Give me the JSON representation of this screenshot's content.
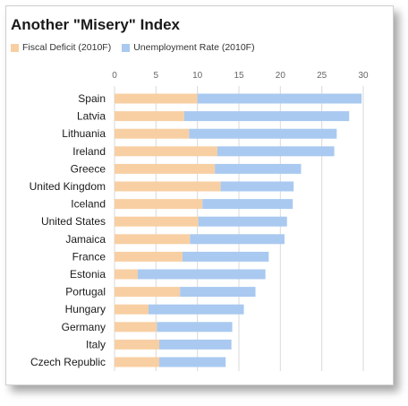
{
  "chart_data": {
    "type": "bar",
    "orientation": "horizontal",
    "stacked": true,
    "title": "Another \"Misery\" Index",
    "xlabel": "",
    "ylabel": "",
    "xlim": [
      0,
      30
    ],
    "x_ticks": [
      "0",
      "5",
      "10",
      "15",
      "20",
      "25",
      "30"
    ],
    "grid": true,
    "legend_position": "top-left",
    "categories": [
      "Spain",
      "Latvia",
      "Lithuania",
      "Ireland",
      "Greece",
      "United Kingdom",
      "Iceland",
      "United States",
      "Jamaica",
      "France",
      "Estonia",
      "Portugal",
      "Hungary",
      "Germany",
      "Italy",
      "Czech Republic"
    ],
    "series": [
      {
        "name": "Fiscal Deficit (2010F)",
        "color": "#f8cfa3",
        "values": [
          10.0,
          8.4,
          9.0,
          12.4,
          12.1,
          12.8,
          10.6,
          10.1,
          9.1,
          8.2,
          2.8,
          7.9,
          4.1,
          5.1,
          5.4,
          5.4
        ]
      },
      {
        "name": "Unemployment Rate (2010F)",
        "color": "#a9c9f0",
        "values": [
          19.8,
          19.9,
          17.8,
          14.1,
          10.4,
          8.8,
          10.9,
          10.7,
          11.4,
          10.4,
          15.4,
          9.1,
          11.5,
          9.1,
          8.7,
          8.0
        ]
      }
    ]
  }
}
